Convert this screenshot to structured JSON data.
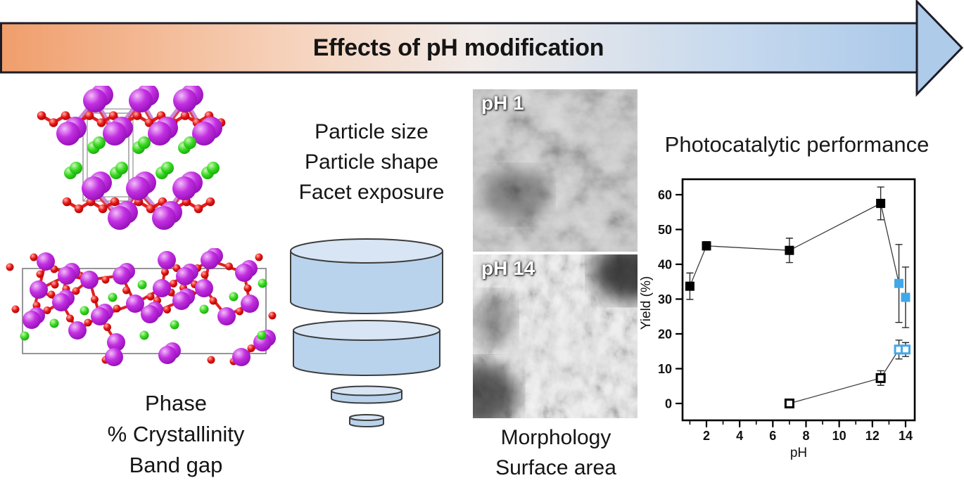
{
  "banner": {
    "title": "Effects of pH modification",
    "gradient": [
      "#f09e6b",
      "#f6d0b8",
      "#f2ece9",
      "#c6d9ee",
      "#abc9e9"
    ],
    "head_color": "#aecbe9",
    "border_color": "#1c1c28"
  },
  "left_panel": {
    "caption_lines": [
      "Phase",
      "% Crystallinity",
      "Band gap"
    ],
    "atom_colors": {
      "metal_purple": "#bb2fd8",
      "oxygen_red": "#e01010",
      "ion_green": "#2ecc18"
    }
  },
  "middle_panel": {
    "caption_lines": [
      "Particle size",
      "Particle shape",
      "Facet exposure"
    ],
    "disc_fill": "#b9d3ec",
    "disc_top": "#d7e5f4",
    "disc_outline": "#3d3d3d"
  },
  "sem_panel": {
    "top_label": "pH 1",
    "bottom_label": "pH 14",
    "caption_lines": [
      "Morphology",
      "Surface area"
    ]
  },
  "chart_data": {
    "type": "scatter",
    "title": "Photocatalytic performance",
    "xlabel": "pH",
    "ylabel": "Yield (%)",
    "xlim": [
      0.5,
      15
    ],
    "ylim": [
      -5,
      65
    ],
    "x_ticks": [
      2,
      4,
      6,
      8,
      10,
      12,
      14
    ],
    "x_minor_ticks": [
      1,
      3,
      5,
      7,
      9,
      11,
      13
    ],
    "y_ticks": [
      0,
      10,
      20,
      30,
      40,
      50,
      60
    ],
    "grid": false,
    "accent_color": "#42a7e8",
    "series": [
      {
        "name": "yield-filled-black",
        "marker": "square-filled",
        "color": "#000000",
        "points": [
          {
            "x": 1,
            "y": 33.7,
            "err": 3.8
          },
          {
            "x": 2,
            "y": 45.3,
            "err": 1.2
          },
          {
            "x": 7,
            "y": 44.0,
            "err": 3.5
          },
          {
            "x": 12.5,
            "y": 57.5,
            "err": 4.7
          }
        ]
      },
      {
        "name": "yield-filled-blue",
        "marker": "square-filled",
        "color": "#42a7e8",
        "points": [
          {
            "x": 13.6,
            "y": 34.5,
            "err": 11.2
          },
          {
            "x": 14,
            "y": 30.5,
            "err": 8.7
          }
        ]
      },
      {
        "name": "yield-open-black",
        "marker": "square-open",
        "color": "#000000",
        "points": [
          {
            "x": 7,
            "y": 0,
            "err": 0
          },
          {
            "x": 12.5,
            "y": 7.3,
            "err": 2.1
          }
        ]
      },
      {
        "name": "yield-open-blue",
        "marker": "square-open",
        "color": "#42a7e8",
        "points": [
          {
            "x": 13.6,
            "y": 15.5,
            "err": 2.7
          },
          {
            "x": 14,
            "y": 15.5,
            "err": 2.0
          }
        ]
      }
    ],
    "connections": [
      [
        [
          1,
          33.7
        ],
        [
          2,
          45.3
        ],
        [
          7,
          44.0
        ],
        [
          12.5,
          57.5
        ],
        [
          13.6,
          34.5
        ]
      ],
      [
        [
          7,
          0
        ],
        [
          12.5,
          7.3
        ],
        [
          13.6,
          15.5
        ]
      ]
    ]
  }
}
